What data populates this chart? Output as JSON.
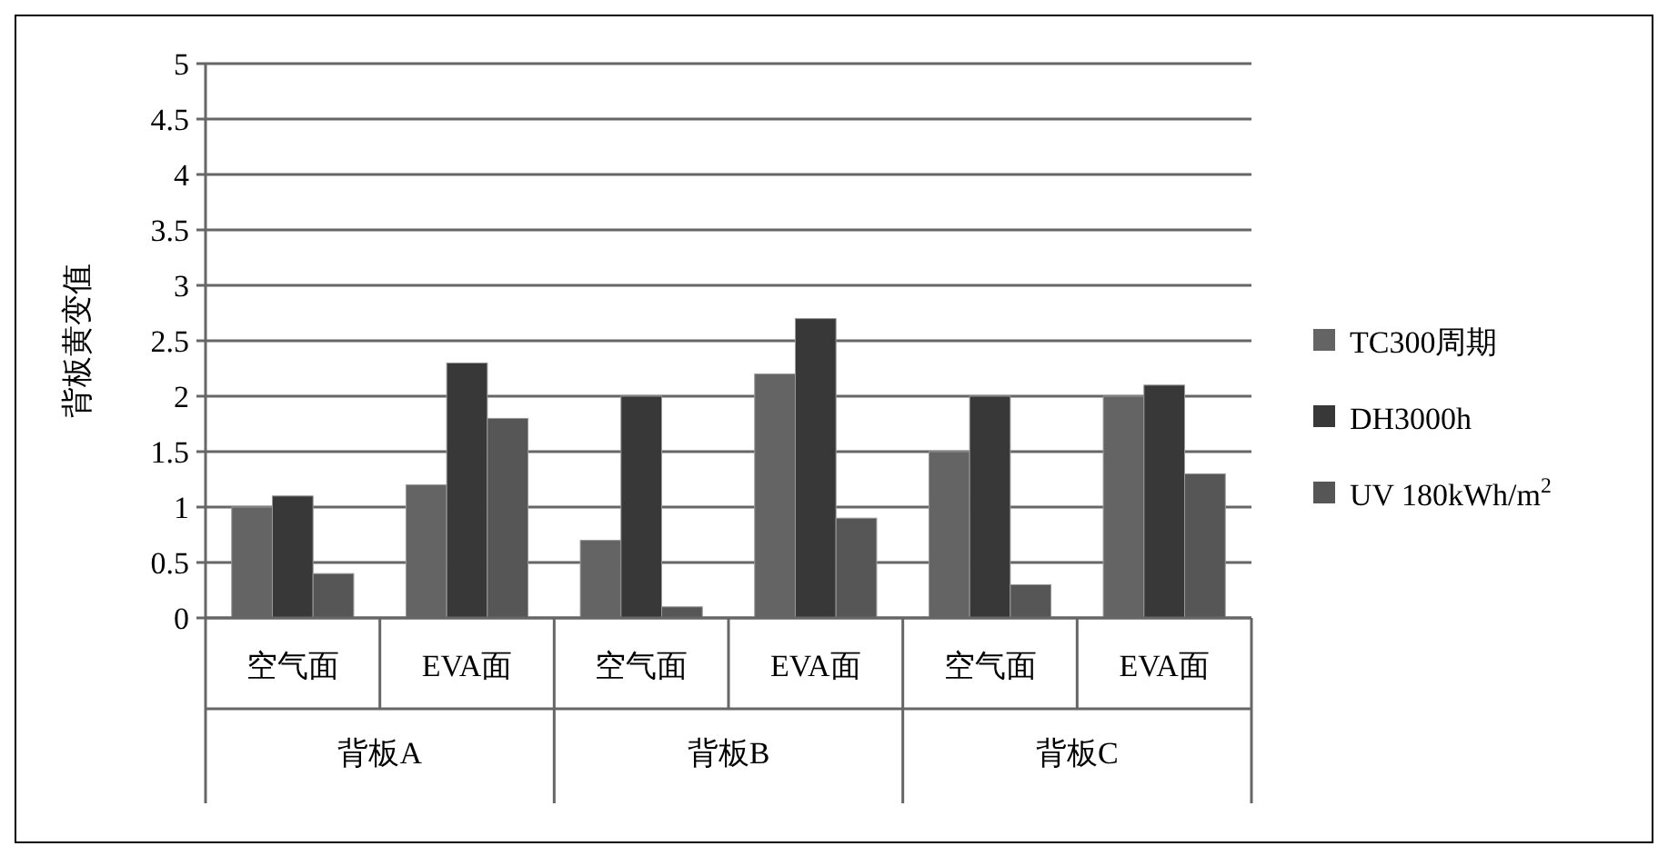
{
  "chart_data": {
    "type": "bar",
    "ylabel": "背板黄变值",
    "categories": [
      "空气面",
      "EVA面",
      "空气面",
      "EVA面",
      "空气面",
      "EVA面"
    ],
    "annotations": [
      "背板A",
      "背板B",
      "背板C"
    ],
    "series": [
      {
        "name": "TC300周期",
        "color": "#646464",
        "values": [
          1.0,
          1.2,
          0.7,
          2.2,
          1.5,
          2.0
        ]
      },
      {
        "name": "DH3000h",
        "color": "#383838",
        "values": [
          1.1,
          2.3,
          2.0,
          2.7,
          2.0,
          2.1
        ]
      },
      {
        "name": "UV 180kWh/m$^{2}$",
        "color": "#565656",
        "values": [
          0.4,
          1.8,
          0.1,
          0.9,
          0.3,
          1.3
        ]
      }
    ],
    "ylim": [
      0,
      5
    ],
    "yticks": [
      0,
      0.5,
      1,
      1.5,
      2,
      2.5,
      3,
      3.5,
      4,
      4.5,
      5
    ],
    "grid": "y",
    "legend": "right"
  }
}
